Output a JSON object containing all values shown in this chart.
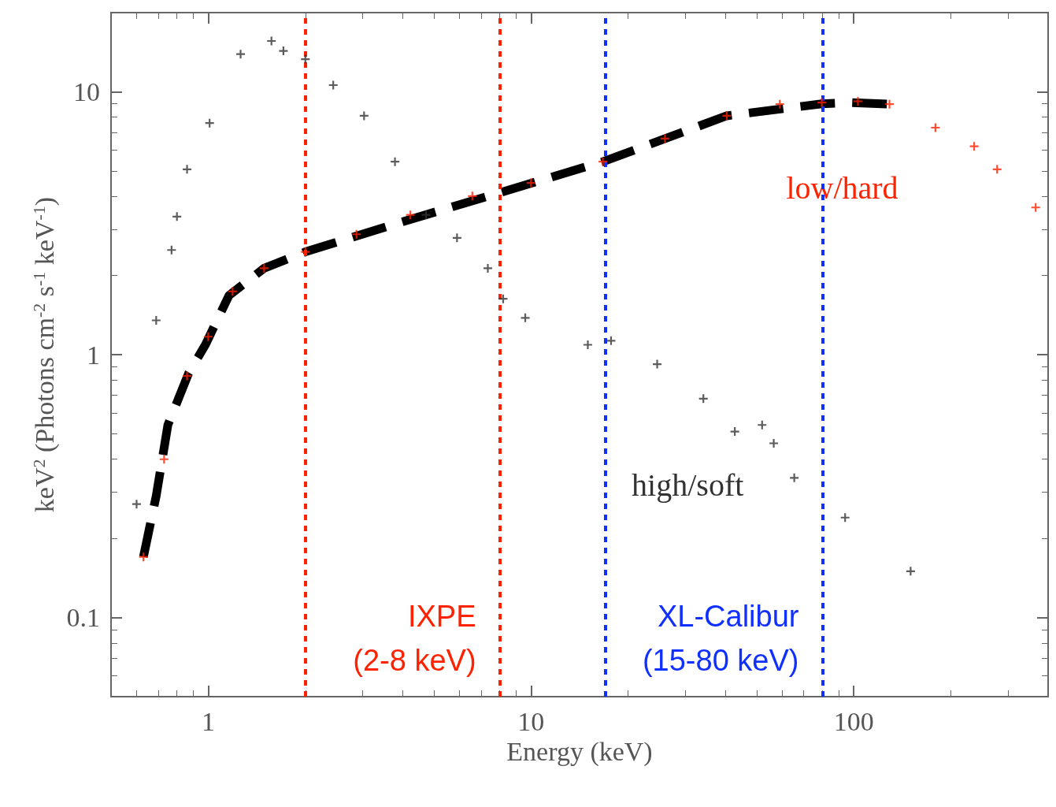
{
  "chart_data": {
    "type": "scatter",
    "xlabel": "Energy (keV)",
    "ylabel": "keV$^{2}$ (Photons cm$^{-2}$ s$^{-1}$ keV$^{-1}$)",
    "log": "xy",
    "xlim": [
      0.5,
      400
    ],
    "ylim": [
      0.05,
      20
    ],
    "xticks": [
      1,
      10,
      100
    ],
    "yticks": [
      0.1,
      1,
      10
    ],
    "grid": false,
    "legend": false,
    "marker": "cross",
    "series": [
      {
        "name": "high/soft",
        "color": "#333333",
        "x": [
          0.6,
          0.69,
          0.77,
          0.8,
          0.86,
          1.01,
          1.26,
          1.57,
          1.71,
          2.0,
          2.44,
          3.04,
          3.79,
          4.73,
          5.9,
          7.35,
          8.2,
          9.6,
          15.0,
          17.7,
          24.6,
          34.2,
          42.8,
          52,
          56.5,
          65.4,
          94,
          150
        ],
        "values": [
          0.27,
          1.35,
          2.5,
          3.35,
          5.07,
          7.6,
          13.9,
          15.6,
          14.3,
          13.3,
          10.6,
          8.1,
          5.42,
          3.4,
          2.78,
          2.13,
          1.63,
          1.38,
          1.09,
          1.13,
          0.92,
          0.68,
          0.51,
          0.54,
          0.46,
          0.34,
          0.24,
          0.15
        ]
      },
      {
        "name": "low/hard",
        "color": "#ff2200",
        "x": [
          0.63,
          0.73,
          0.86,
          1.0,
          1.19,
          1.49,
          2.0,
          2.88,
          4.23,
          6.58,
          10,
          16.7,
          26,
          40.4,
          59,
          79.6,
          103,
          129,
          179,
          236,
          278,
          366
        ],
        "values": [
          0.17,
          0.4,
          0.83,
          1.17,
          1.74,
          2.13,
          2.46,
          2.87,
          3.4,
          4.01,
          4.5,
          5.42,
          6.63,
          8.1,
          8.97,
          9.1,
          9.2,
          8.97,
          7.3,
          6.2,
          5.07,
          3.63
        ]
      },
      {
        "type": "line",
        "color": "#000000",
        "line_style": "dashed",
        "marker": "none",
        "x": [
          0.63,
          0.69,
          0.75,
          0.87,
          0.98,
          1.16,
          1.49,
          2.0,
          3.79,
          8.1,
          16.7,
          40.4,
          79.6,
          98,
          129
        ],
        "values": [
          0.17,
          0.29,
          0.54,
          0.85,
          1.09,
          1.68,
          2.13,
          2.46,
          3.14,
          4.15,
          5.42,
          8.1,
          9.0,
          9.1,
          8.97
        ]
      }
    ],
    "ref_lines": [
      {
        "axis": "x",
        "value": 2,
        "color": "#ff2200",
        "line_style": "dotted"
      },
      {
        "axis": "x",
        "value": 8,
        "label": "IXPE\n(2-8 keV)",
        "color": "#ff2200",
        "line_style": "dotted"
      },
      {
        "axis": "x",
        "value": 17,
        "color": "#1030ff",
        "line_style": "dotted"
      },
      {
        "axis": "x",
        "value": 80,
        "label": "XL-Calibur\n(15-80 keV)",
        "color": "#1030ff",
        "line_style": "dotted"
      }
    ]
  }
}
